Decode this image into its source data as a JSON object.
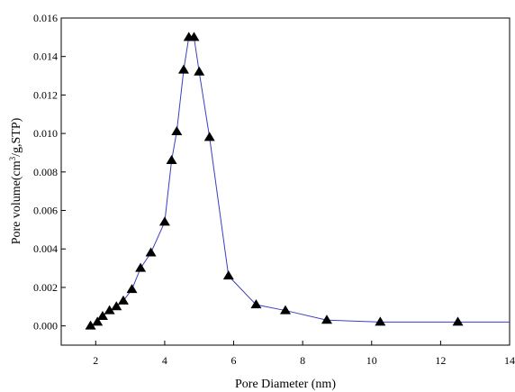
{
  "chart_data": {
    "type": "line",
    "title": "",
    "xlabel": "Pore Diameter (nm)",
    "ylabel": {
      "prefix": "Pore volume(cm",
      "sup": "3",
      "suffix": "/g,STP)"
    },
    "xlim": [
      1,
      14
    ],
    "ylim": [
      -0.001,
      0.016
    ],
    "x_ticks": [
      2,
      4,
      6,
      8,
      10,
      12,
      14
    ],
    "x_tick_labels": [
      "2",
      "4",
      "6",
      "8",
      "10",
      "12",
      "14"
    ],
    "y_ticks": [
      0.0,
      0.002,
      0.004,
      0.006,
      0.008,
      0.01,
      0.012,
      0.014,
      0.016
    ],
    "y_tick_labels": [
      "0.000",
      "0.002",
      "0.004",
      "0.006",
      "0.008",
      "0.010",
      "0.012",
      "0.014",
      "0.016"
    ],
    "grid": false,
    "legend": "none",
    "line_color": "#3a3fc4",
    "marker_color": "#000000",
    "marker": "triangle-up",
    "series": [
      {
        "x": [
          1.85,
          2.05,
          2.2,
          2.4,
          2.6,
          2.8,
          3.05,
          3.3,
          3.6,
          4.0,
          4.2,
          4.35,
          4.55,
          4.7,
          4.85,
          5.0,
          5.3,
          5.85,
          6.65,
          7.5,
          8.7,
          10.25,
          12.5
        ],
        "y": [
          0.0,
          0.0002,
          0.0005,
          0.0008,
          0.001,
          0.0013,
          0.0019,
          0.003,
          0.0038,
          0.0054,
          0.0086,
          0.0101,
          0.0133,
          0.015,
          0.015,
          0.0132,
          0.0098,
          0.0026,
          0.0011,
          0.0008,
          0.0003,
          0.0002,
          0.0002
        ]
      }
    ],
    "line_extends_to_x": 14
  }
}
